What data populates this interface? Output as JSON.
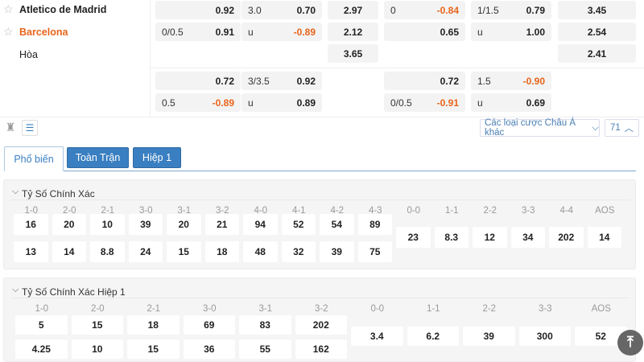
{
  "teams": [
    {
      "name": "Atletico de Madrid",
      "color": "#222222",
      "starred": false
    },
    {
      "name": "Barcelona",
      "color": "#e8641b",
      "starred": false
    },
    {
      "name": "Hòa",
      "color": "#333333"
    }
  ],
  "odds_blocks": [
    [
      [
        [
          "",
          "0.92"
        ],
        [
          "3.0",
          "0.70"
        ],
        [
          "2.97"
        ],
        [
          "0",
          "-0.84"
        ],
        [
          "1/1.5",
          "0.79"
        ],
        [
          "3.45"
        ]
      ],
      [
        [
          "0/0.5",
          "0.91"
        ],
        [
          "u",
          "-0.89"
        ],
        [
          "2.12"
        ],
        [
          "",
          "0.65"
        ],
        [
          "u",
          "1.00"
        ],
        [
          "2.54"
        ]
      ],
      [
        null,
        null,
        [
          "3.65"
        ],
        null,
        null,
        [
          "2.41"
        ]
      ]
    ],
    [
      [
        [
          "",
          "0.72"
        ],
        [
          "3/3.5",
          "0.92"
        ],
        null,
        [
          "",
          "0.72"
        ],
        [
          "1.5",
          "-0.90"
        ],
        null
      ],
      [
        [
          "0.5",
          "-0.89"
        ],
        [
          "u",
          "0.89"
        ],
        null,
        [
          "0/0.5",
          "-0.91"
        ],
        [
          "u",
          "0.69"
        ],
        null
      ]
    ]
  ],
  "toolbar": {
    "asian_dropdown": "Các loại cược Châu Á khác",
    "count": "71"
  },
  "tabs": [
    {
      "label": "Phổ biến",
      "active": true
    },
    {
      "label": "Toàn Trận"
    },
    {
      "label": "Hiệp 1"
    }
  ],
  "sections": [
    {
      "title": "Tỷ Số Chính Xác",
      "two_row": {
        "headers": [
          "1-0",
          "2-0",
          "2-1",
          "3-0",
          "3-1",
          "3-2",
          "4-0",
          "4-1",
          "4-2",
          "4-3"
        ],
        "home": [
          "16",
          "20",
          "10",
          "39",
          "20",
          "21",
          "94",
          "52",
          "54",
          "89"
        ],
        "away": [
          "13",
          "14",
          "8.8",
          "24",
          "15",
          "18",
          "48",
          "32",
          "39",
          "75"
        ]
      },
      "single": {
        "headers": [
          "0-0",
          "1-1",
          "2-2",
          "3-3",
          "4-4",
          "AOS"
        ],
        "values": [
          "23",
          "8.3",
          "12",
          "34",
          "202",
          "14"
        ]
      }
    },
    {
      "title": "Tỷ Số Chính Xác Hiệp 1",
      "two_row": {
        "headers": [
          "1-0",
          "2-0",
          "2-1",
          "3-0",
          "3-1",
          "3-2"
        ],
        "home": [
          "5",
          "15",
          "18",
          "69",
          "83",
          "202"
        ],
        "away": [
          "4.25",
          "10",
          "15",
          "36",
          "55",
          "162"
        ]
      },
      "single": {
        "headers": [
          "0-0",
          "1-1",
          "2-2",
          "3-3",
          "AOS"
        ],
        "values": [
          "3.4",
          "6.2",
          "39",
          "300",
          "52"
        ]
      }
    }
  ],
  "colors": {
    "accent": "#3a7fc1",
    "negative": "#e8641b"
  }
}
